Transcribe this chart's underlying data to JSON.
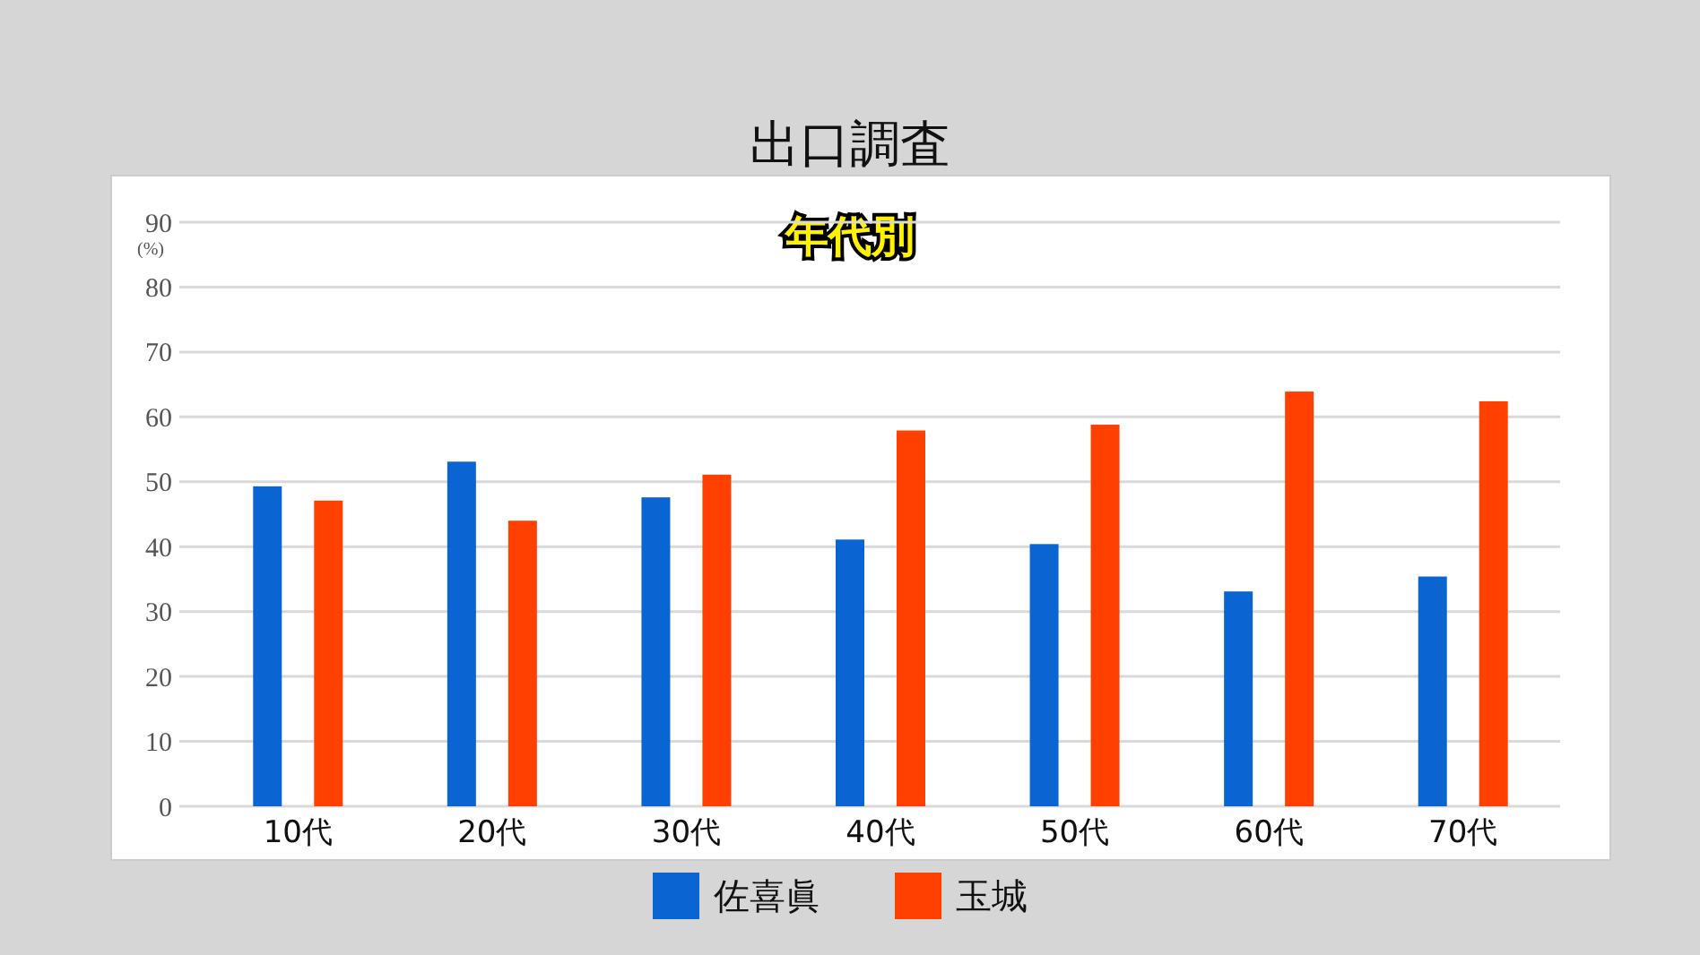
{
  "chart_data": {
    "type": "bar",
    "title": "出口調査",
    "subtitle": "年代別",
    "ylabel": "(%)",
    "categories": [
      "10代",
      "20代",
      "30代",
      "40代",
      "50代",
      "60代",
      "70代"
    ],
    "series": [
      {
        "name": "佐喜眞",
        "color": "#0a64d2",
        "values": [
          49.3,
          53.1,
          47.6,
          41.1,
          40.4,
          33.1,
          35.4
        ]
      },
      {
        "name": "玉城",
        "color": "#ff4000",
        "values": [
          47.1,
          44.0,
          51.1,
          57.9,
          58.8,
          63.9,
          62.4
        ]
      }
    ],
    "ylim": [
      0,
      90
    ],
    "yticks": [
      0,
      10,
      20,
      30,
      40,
      50,
      60,
      70,
      80,
      90
    ],
    "grid": "y",
    "legend": "bottom"
  }
}
